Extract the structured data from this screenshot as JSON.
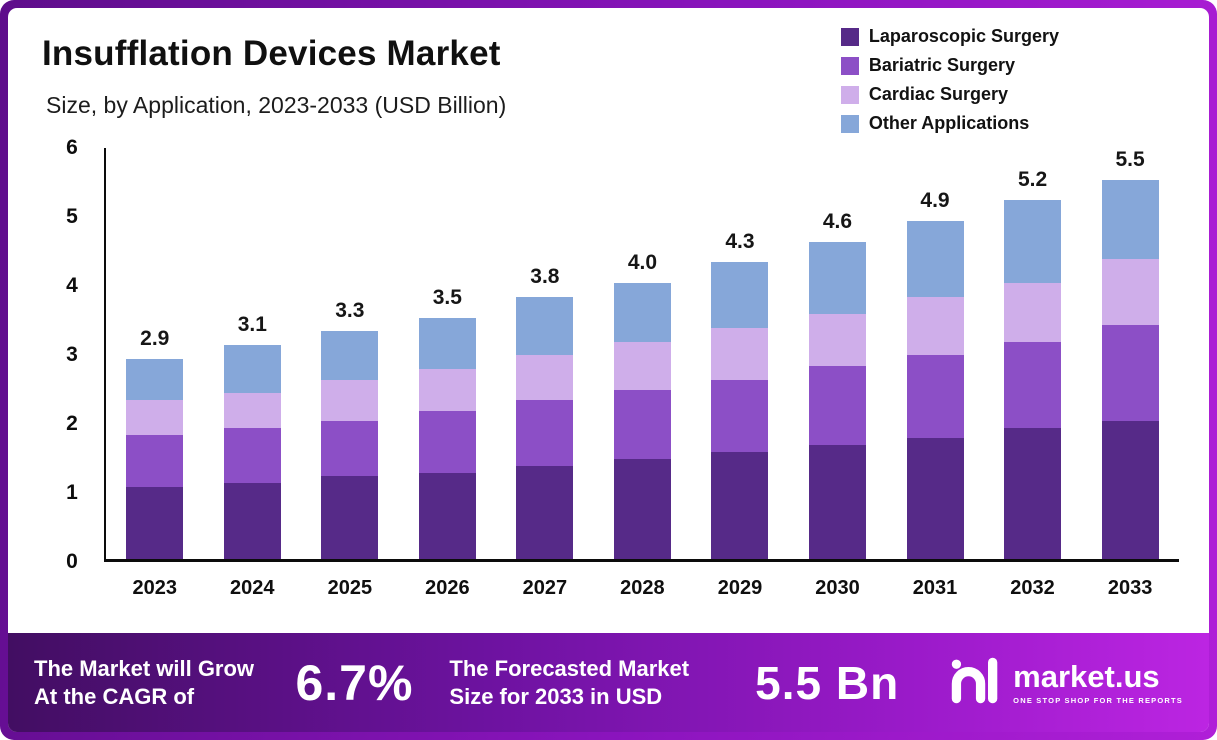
{
  "header": {
    "title": "Insufflation Devices Market",
    "subtitle": "Size, by Application, 2023-2033 (USD Billion)"
  },
  "chart_data": {
    "type": "bar",
    "stacked": true,
    "title": "Insufflation Devices Market Size, by Application, 2023-2033 (USD Billion)",
    "categories": [
      "2023",
      "2024",
      "2025",
      "2026",
      "2027",
      "2028",
      "2029",
      "2030",
      "2031",
      "2032",
      "2033"
    ],
    "series": [
      {
        "name": "Laparoscopic Surgery",
        "color": "#562a88",
        "values": [
          1.05,
          1.1,
          1.2,
          1.25,
          1.35,
          1.45,
          1.55,
          1.65,
          1.75,
          1.9,
          2.0
        ]
      },
      {
        "name": "Bariatric Surgery",
        "color": "#8c4fc6",
        "values": [
          0.75,
          0.8,
          0.8,
          0.9,
          0.95,
          1.0,
          1.05,
          1.15,
          1.2,
          1.25,
          1.4
        ]
      },
      {
        "name": "Cardiac Surgery",
        "color": "#cfaeea",
        "values": [
          0.5,
          0.5,
          0.6,
          0.6,
          0.65,
          0.7,
          0.75,
          0.75,
          0.85,
          0.85,
          0.95
        ]
      },
      {
        "name": "Other Applications",
        "color": "#86a7d9",
        "values": [
          0.6,
          0.7,
          0.7,
          0.75,
          0.85,
          0.85,
          0.95,
          1.05,
          1.1,
          1.2,
          1.15
        ]
      }
    ],
    "totals": [
      "2.9",
      "3.1",
      "3.3",
      "3.5",
      "3.8",
      "4.0",
      "4.3",
      "4.6",
      "4.9",
      "5.2",
      "5.5"
    ],
    "xlabel": "",
    "ylabel": "",
    "ylim": [
      0,
      6
    ],
    "yticks": [
      0,
      1,
      2,
      3,
      4,
      5,
      6
    ],
    "grid": false,
    "legend_position": "top-right"
  },
  "footer": {
    "cagr_label": "The Market will Grow At the CAGR of",
    "cagr_value": "6.7%",
    "forecast_label": "The Forecasted Market Size for 2033 in USD",
    "forecast_value": "5.5 Bn",
    "brand": "market.us",
    "tagline": "ONE STOP SHOP FOR THE REPORTS"
  }
}
